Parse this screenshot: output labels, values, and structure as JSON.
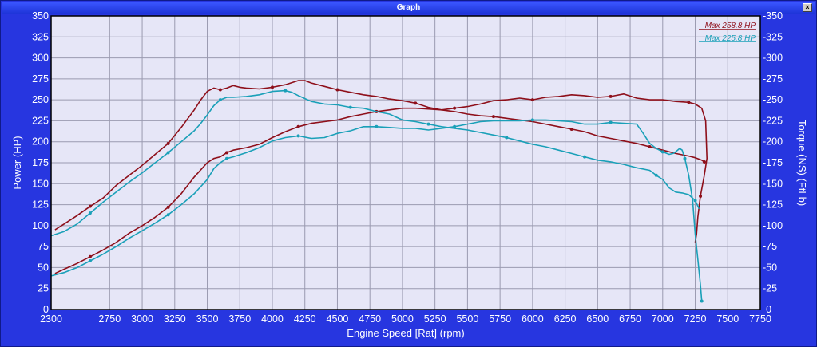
{
  "window": {
    "title": "Graph",
    "close_glyph": "×"
  },
  "colors": {
    "red": "#8e0f1a",
    "cyan": "#1aa0b8",
    "plot_bg": "#e6e6f7",
    "grid": "#9a9ab0"
  },
  "chart_data": {
    "type": "line",
    "xlabel": "Engine Speed [Rat] (rpm)",
    "ylabel": "Power (HP)",
    "ylabel_right": "Torque (NS) (FtLb)",
    "xlim": [
      2300,
      7750
    ],
    "ylim": [
      0,
      350
    ],
    "x_ticks": [
      "2300",
      "2750",
      "3000",
      "3250",
      "3500",
      "3750",
      "4000",
      "4250",
      "4500",
      "4750",
      "5000",
      "5250",
      "5500",
      "5750",
      "6000",
      "6250",
      "6500",
      "6750",
      "7000",
      "7250",
      "7500",
      "7750"
    ],
    "y_ticks": [
      "0",
      "25",
      "50",
      "75",
      "100",
      "125",
      "150",
      "175",
      "200",
      "225",
      "250",
      "275",
      "300",
      "325",
      "350"
    ],
    "y_ticks_right": [
      "0",
      "25",
      "50",
      "75",
      "100",
      "125",
      "150",
      "175",
      "200",
      "225",
      "250",
      "275",
      "300",
      "325",
      "350"
    ],
    "grid": true,
    "legend": [
      {
        "label": "Max 258.8 HP",
        "color": "#8e0f1a"
      },
      {
        "label": "Max 225.8 HP",
        "color": "#1aa0b8"
      }
    ],
    "series": [
      {
        "color": "#8e0f1a",
        "x": [
          2330,
          2400,
          2500,
          2600,
          2700,
          2800,
          2900,
          3000,
          3100,
          3200,
          3300,
          3400,
          3450,
          3500,
          3550,
          3600,
          3650,
          3700,
          3750,
          3800,
          3900,
          4000,
          4100,
          4200,
          4250,
          4300,
          4400,
          4500,
          4600,
          4700,
          4800,
          4900,
          5000,
          5100,
          5200,
          5300,
          5400,
          5500,
          5600,
          5700,
          5800,
          5900,
          6000,
          6100,
          6200,
          6300,
          6400,
          6500,
          6600,
          6700,
          6800,
          6900,
          7000,
          7100,
          7200,
          7250,
          7300,
          7320
        ],
        "y": [
          95,
          102,
          112,
          123,
          133,
          148,
          160,
          172,
          185,
          198,
          217,
          238,
          250,
          260,
          264,
          262,
          264,
          267,
          265,
          264,
          263,
          265,
          268,
          273,
          273,
          270,
          266,
          262,
          259,
          256,
          254,
          251,
          249,
          246,
          241,
          238,
          236,
          233,
          231,
          230,
          228,
          226,
          224,
          221,
          218,
          215,
          212,
          207,
          204,
          201,
          198,
          194,
          190,
          186,
          183,
          181,
          178,
          176
        ]
      },
      {
        "color": "#8e0f1a",
        "x": [
          2330,
          2400,
          2500,
          2600,
          2700,
          2800,
          2900,
          3000,
          3100,
          3200,
          3300,
          3400,
          3500,
          3550,
          3600,
          3650,
          3700,
          3800,
          3900,
          4000,
          4100,
          4200,
          4300,
          4400,
          4500,
          4600,
          4700,
          4800,
          4900,
          5000,
          5100,
          5200,
          5300,
          5400,
          5500,
          5600,
          5700,
          5800,
          5900,
          6000,
          6100,
          6200,
          6300,
          6400,
          6500,
          6600,
          6700,
          6800,
          6900,
          7000,
          7100,
          7200,
          7250,
          7300,
          7330,
          7340,
          7320,
          7290,
          7270,
          7260,
          7250
        ],
        "y": [
          43,
          48,
          55,
          63,
          71,
          80,
          91,
          100,
          110,
          122,
          138,
          158,
          175,
          180,
          182,
          187,
          190,
          193,
          197,
          205,
          212,
          218,
          222,
          224,
          226,
          230,
          233,
          236,
          238,
          240,
          240,
          239,
          238,
          240,
          242,
          245,
          249,
          250,
          252,
          250,
          253,
          254,
          256,
          255,
          253,
          254,
          257,
          252,
          250,
          250,
          248,
          247,
          245,
          240,
          225,
          180,
          160,
          135,
          110,
          90,
          80
        ]
      },
      {
        "color": "#1aa0b8",
        "x": [
          2300,
          2400,
          2500,
          2600,
          2700,
          2800,
          2900,
          3000,
          3100,
          3200,
          3300,
          3400,
          3450,
          3500,
          3550,
          3600,
          3650,
          3700,
          3800,
          3900,
          4000,
          4100,
          4150,
          4200,
          4300,
          4400,
          4500,
          4600,
          4700,
          4800,
          4900,
          5000,
          5100,
          5200,
          5300,
          5400,
          5500,
          5600,
          5700,
          5800,
          5900,
          6000,
          6100,
          6200,
          6300,
          6400,
          6500,
          6600,
          6700,
          6800,
          6900,
          6950,
          7000,
          7050,
          7100,
          7150,
          7200,
          7250,
          7280
        ],
        "y": [
          88,
          93,
          102,
          115,
          128,
          140,
          152,
          163,
          175,
          187,
          200,
          213,
          222,
          232,
          243,
          250,
          253,
          253,
          254,
          256,
          260,
          261,
          259,
          255,
          248,
          245,
          244,
          241,
          240,
          236,
          233,
          226,
          224,
          221,
          218,
          216,
          214,
          211,
          208,
          205,
          201,
          197,
          194,
          190,
          186,
          182,
          178,
          176,
          173,
          169,
          166,
          160,
          155,
          145,
          140,
          139,
          137,
          130,
          120
        ]
      },
      {
        "color": "#1aa0b8",
        "x": [
          2300,
          2400,
          2500,
          2600,
          2700,
          2800,
          2900,
          3000,
          3100,
          3200,
          3300,
          3400,
          3500,
          3550,
          3600,
          3650,
          3700,
          3800,
          3900,
          4000,
          4100,
          4200,
          4300,
          4400,
          4500,
          4600,
          4700,
          4800,
          4900,
          5000,
          5100,
          5200,
          5300,
          5400,
          5500,
          5600,
          5700,
          5800,
          5900,
          6000,
          6100,
          6200,
          6300,
          6400,
          6500,
          6600,
          6700,
          6800,
          6850,
          6900,
          6950,
          7000,
          7050,
          7080,
          7100,
          7130,
          7150,
          7170,
          7200,
          7230,
          7250,
          7270,
          7290,
          7300
        ],
        "y": [
          40,
          44,
          50,
          58,
          66,
          75,
          85,
          94,
          103,
          113,
          125,
          138,
          155,
          168,
          175,
          180,
          182,
          187,
          193,
          201,
          205,
          207,
          204,
          205,
          210,
          213,
          218,
          218,
          217,
          216,
          216,
          214,
          216,
          218,
          221,
          224,
          225,
          225,
          225,
          226,
          226,
          225,
          224,
          221,
          221,
          223,
          222,
          221,
          210,
          198,
          192,
          188,
          185,
          186,
          188,
          192,
          190,
          180,
          160,
          130,
          90,
          60,
          30,
          10
        ]
      }
    ]
  }
}
